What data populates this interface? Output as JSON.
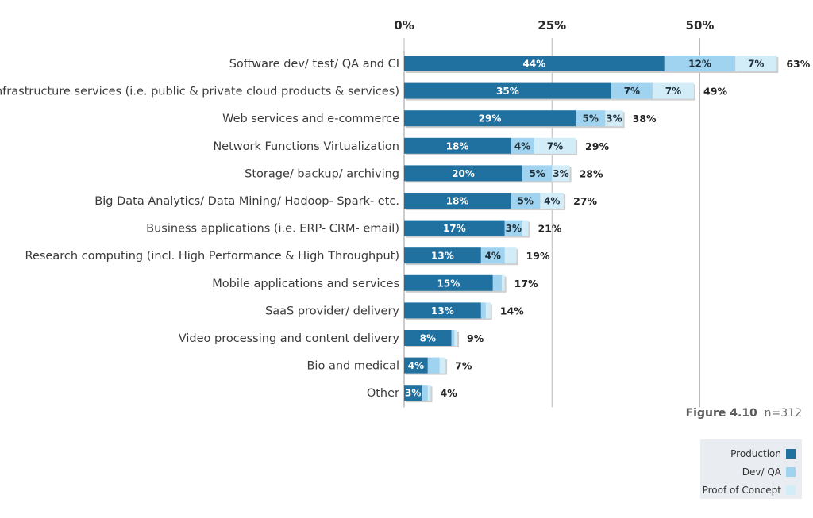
{
  "chart_data": {
    "type": "bar",
    "orientation": "horizontal",
    "stacked": true,
    "x_ticks": [
      "0%",
      "25%",
      "50%"
    ],
    "xlim": [
      0,
      63
    ],
    "categories": [
      "Software dev/ test/ QA and CI",
      "Infrastructure services (i.e. public & private cloud products & services)",
      "Web services and e-commerce",
      "Network Functions Virtualization",
      "Storage/  backup/ archiving",
      "Big Data Analytics/ Data Mining/ Hadoop- Spark- etc.",
      "Business applications (i.e. ERP- CRM- email)",
      "Research computing (incl. High Performance & High Throughput)",
      "Mobile applications and services",
      "SaaS provider/ delivery",
      "Video processing and content delivery",
      "Bio and medical",
      "Other"
    ],
    "series": [
      {
        "name": "Production",
        "color": "#2171a0",
        "values": [
          44,
          35,
          29,
          18,
          20,
          18,
          17,
          13,
          15,
          13,
          8,
          4,
          3
        ],
        "labels": [
          "44%",
          "35%",
          "29%",
          "18%",
          "20%",
          "18%",
          "17%",
          "13%",
          "15%",
          "13%",
          "8%",
          "4%",
          "3%"
        ]
      },
      {
        "name": "Dev/ QA",
        "color": "#9fd3ef",
        "values": [
          12,
          7,
          5,
          4,
          5,
          5,
          3,
          4,
          1.5,
          0.8,
          0.5,
          2,
          1
        ],
        "labels": [
          "12%",
          "7%",
          "5%",
          "4%",
          "5%",
          "5%",
          "3%",
          "4%",
          "",
          "",
          "",
          "",
          ""
        ]
      },
      {
        "name": "Proof of Concept",
        "color": "#d2ecf8",
        "values": [
          7,
          7,
          3,
          7,
          3,
          4,
          1,
          2,
          0.5,
          0.8,
          0.5,
          1,
          0.5
        ],
        "labels": [
          "7%",
          "7%",
          "3%",
          "7%",
          "3%",
          "4%",
          "",
          "",
          "",
          "",
          "",
          "",
          ""
        ]
      }
    ],
    "totals": [
      "63%",
      "49%",
      "38%",
      "29%",
      "28%",
      "27%",
      "21%",
      "19%",
      "17%",
      "14%",
      "9%",
      "7%",
      "4%"
    ],
    "grid": true,
    "legend_position": "bottom-right"
  },
  "figure": {
    "label": "Figure 4.10",
    "n": "n=312"
  }
}
